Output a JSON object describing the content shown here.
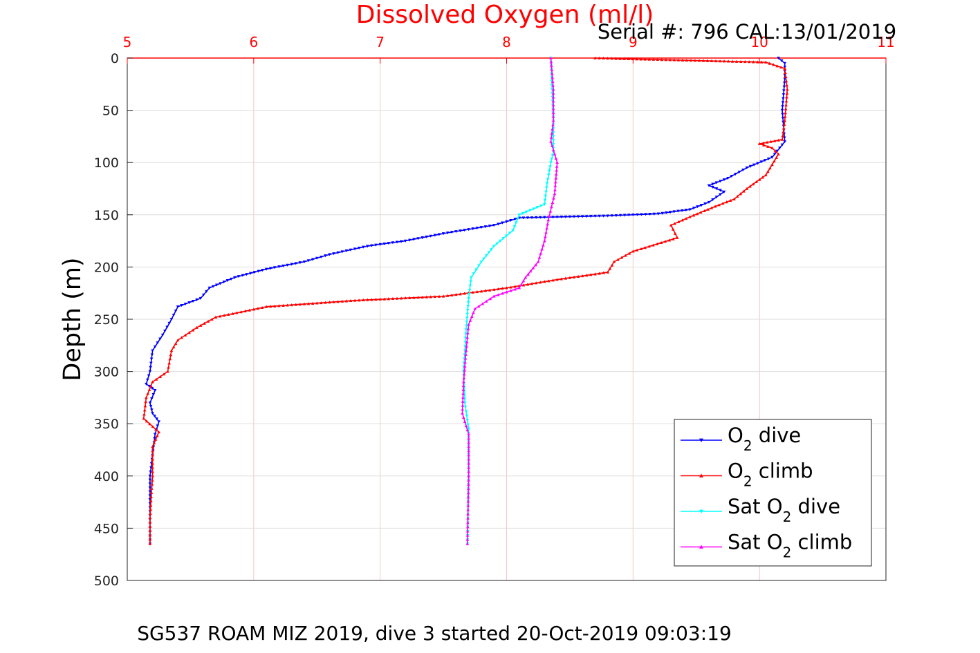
{
  "chart_data": {
    "type": "line",
    "title": "Dissolved Oxygen (ml/l)",
    "subtitle": "Serial #: 796  CAL:13/01/2019",
    "caption": "SG537 ROAM MIZ 2019, dive 3 started 20-Oct-2019 09:03:19",
    "xlabel": "",
    "ylabel": "Depth (m)",
    "xlim": [
      5,
      11
    ],
    "ylim": [
      0,
      500
    ],
    "y_reversed": true,
    "x_axis_position": "top",
    "xticks": [
      "5",
      "6",
      "7",
      "8",
      "9",
      "10",
      "11"
    ],
    "yticks": [
      "0",
      "50",
      "100",
      "150",
      "200",
      "250",
      "300",
      "350",
      "400",
      "450",
      "500"
    ],
    "grid": true,
    "legend_position": "bottom-right",
    "series": [
      {
        "name": "O2 dive",
        "legend": {
          "main": "O",
          "sub": "2",
          "rest": " dive",
          "pre": ""
        },
        "color": "#0000ff",
        "marker": "down-triangle",
        "points": [
          [
            10.15,
            0
          ],
          [
            10.2,
            5
          ],
          [
            10.2,
            20
          ],
          [
            10.18,
            50
          ],
          [
            10.2,
            80
          ],
          [
            10.1,
            95
          ],
          [
            9.9,
            105
          ],
          [
            9.75,
            115
          ],
          [
            9.6,
            122
          ],
          [
            9.72,
            128
          ],
          [
            9.6,
            138
          ],
          [
            9.45,
            145
          ],
          [
            9.2,
            149
          ],
          [
            8.8,
            151
          ],
          [
            8.1,
            153
          ],
          [
            7.9,
            160
          ],
          [
            7.5,
            168
          ],
          [
            7.2,
            175
          ],
          [
            6.9,
            180
          ],
          [
            6.6,
            188
          ],
          [
            6.4,
            195
          ],
          [
            6.1,
            202
          ],
          [
            5.85,
            210
          ],
          [
            5.65,
            220
          ],
          [
            5.58,
            230
          ],
          [
            5.4,
            238
          ],
          [
            5.35,
            250
          ],
          [
            5.28,
            265
          ],
          [
            5.2,
            280
          ],
          [
            5.18,
            300
          ],
          [
            5.15,
            312
          ],
          [
            5.22,
            318
          ],
          [
            5.18,
            330
          ],
          [
            5.2,
            340
          ],
          [
            5.25,
            348
          ],
          [
            5.22,
            360
          ],
          [
            5.2,
            380
          ],
          [
            5.18,
            400
          ],
          [
            5.18,
            430
          ],
          [
            5.18,
            465
          ]
        ]
      },
      {
        "name": "O2 climb",
        "legend": {
          "main": "O",
          "sub": "2",
          "rest": " climb",
          "pre": ""
        },
        "color": "#ff0000",
        "marker": "up-triangle",
        "points": [
          [
            8.7,
            0
          ],
          [
            10.05,
            4
          ],
          [
            10.2,
            10
          ],
          [
            10.22,
            30
          ],
          [
            10.2,
            60
          ],
          [
            10.18,
            78
          ],
          [
            10.0,
            82
          ],
          [
            10.1,
            86
          ],
          [
            10.15,
            92
          ],
          [
            10.05,
            112
          ],
          [
            9.9,
            125
          ],
          [
            9.8,
            135
          ],
          [
            9.65,
            142
          ],
          [
            9.45,
            152
          ],
          [
            9.3,
            160
          ],
          [
            9.35,
            172
          ],
          [
            9.0,
            185
          ],
          [
            8.85,
            195
          ],
          [
            8.8,
            205
          ],
          [
            8.4,
            212
          ],
          [
            8.0,
            220
          ],
          [
            7.5,
            228
          ],
          [
            6.8,
            232
          ],
          [
            6.1,
            238
          ],
          [
            5.7,
            248
          ],
          [
            5.55,
            258
          ],
          [
            5.4,
            270
          ],
          [
            5.35,
            280
          ],
          [
            5.32,
            300
          ],
          [
            5.2,
            310
          ],
          [
            5.15,
            325
          ],
          [
            5.13,
            345
          ],
          [
            5.25,
            358
          ],
          [
            5.2,
            372
          ],
          [
            5.2,
            400
          ],
          [
            5.18,
            440
          ],
          [
            5.18,
            465
          ]
        ]
      },
      {
        "name": "Sat O2 dive",
        "legend": {
          "main": "Sat O",
          "sub": "2",
          "rest": " dive",
          "pre": ""
        },
        "color": "#00ffff",
        "marker": "down-triangle",
        "points": [
          [
            8.35,
            0
          ],
          [
            8.36,
            30
          ],
          [
            8.37,
            60
          ],
          [
            8.37,
            90
          ],
          [
            8.35,
            100
          ],
          [
            8.32,
            120
          ],
          [
            8.3,
            140
          ],
          [
            8.1,
            150
          ],
          [
            8.05,
            165
          ],
          [
            7.9,
            180
          ],
          [
            7.8,
            195
          ],
          [
            7.72,
            210
          ],
          [
            7.7,
            230
          ],
          [
            7.68,
            260
          ],
          [
            7.66,
            300
          ],
          [
            7.67,
            330
          ],
          [
            7.7,
            355
          ],
          [
            7.7,
            400
          ],
          [
            7.69,
            465
          ]
        ]
      },
      {
        "name": "Sat O2 climb",
        "legend": {
          "main": "Sat O",
          "sub": "2",
          "rest": " climb",
          "pre": ""
        },
        "color": "#ff00ff",
        "marker": "up-triangle",
        "points": [
          [
            8.35,
            0
          ],
          [
            8.37,
            30
          ],
          [
            8.37,
            60
          ],
          [
            8.35,
            80
          ],
          [
            8.4,
            100
          ],
          [
            8.38,
            130
          ],
          [
            8.33,
            155
          ],
          [
            8.3,
            175
          ],
          [
            8.25,
            195
          ],
          [
            8.15,
            210
          ],
          [
            8.1,
            220
          ],
          [
            7.9,
            228
          ],
          [
            7.75,
            240
          ],
          [
            7.7,
            255
          ],
          [
            7.68,
            280
          ],
          [
            7.66,
            310
          ],
          [
            7.65,
            340
          ],
          [
            7.7,
            360
          ],
          [
            7.7,
            400
          ],
          [
            7.69,
            465
          ]
        ]
      }
    ]
  }
}
